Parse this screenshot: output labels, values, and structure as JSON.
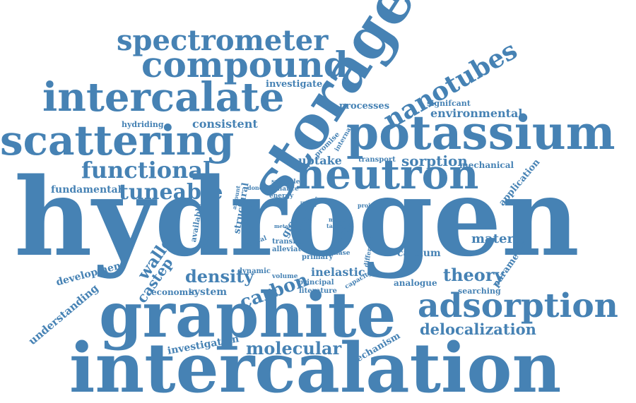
{
  "style": {
    "word_color": "#4682b4",
    "background": "#ffffff"
  },
  "words": [
    "hydrogen",
    "intercalation",
    "graphite",
    "storage",
    "potassium",
    "scattering",
    "intercalate",
    "compound",
    "spectrometer",
    "neutron",
    "nanotubes",
    "adsorption",
    "functional",
    "tuneable",
    "molecular",
    "carbon",
    "density",
    "delocalization",
    "theory",
    "walled",
    "castep",
    "material",
    "consistent",
    "sorption",
    "uptake",
    "environmental",
    "investigate",
    "processes",
    "signifcant",
    "mechanical",
    "fundamental",
    "hydriding",
    "application",
    "development",
    "understanding",
    "inelastic",
    "calcium",
    "analogue",
    "economic",
    "system",
    "investigation",
    "mechanism",
    "parameter",
    "searching",
    "dynamic",
    "alleviate",
    "primary",
    "principal",
    "literature",
    "volume",
    "transfer",
    "energy",
    "transport",
    "promise",
    "internal",
    "suitable",
    "reliance",
    "donor",
    "structural",
    "physical",
    "critical",
    "transition",
    "available",
    "amount",
    "project",
    "model",
    "target",
    "damage",
    "phase",
    "different",
    "capacity",
    "gics",
    "site",
    "metal",
    "data",
    "road",
    "must",
    "time"
  ]
}
